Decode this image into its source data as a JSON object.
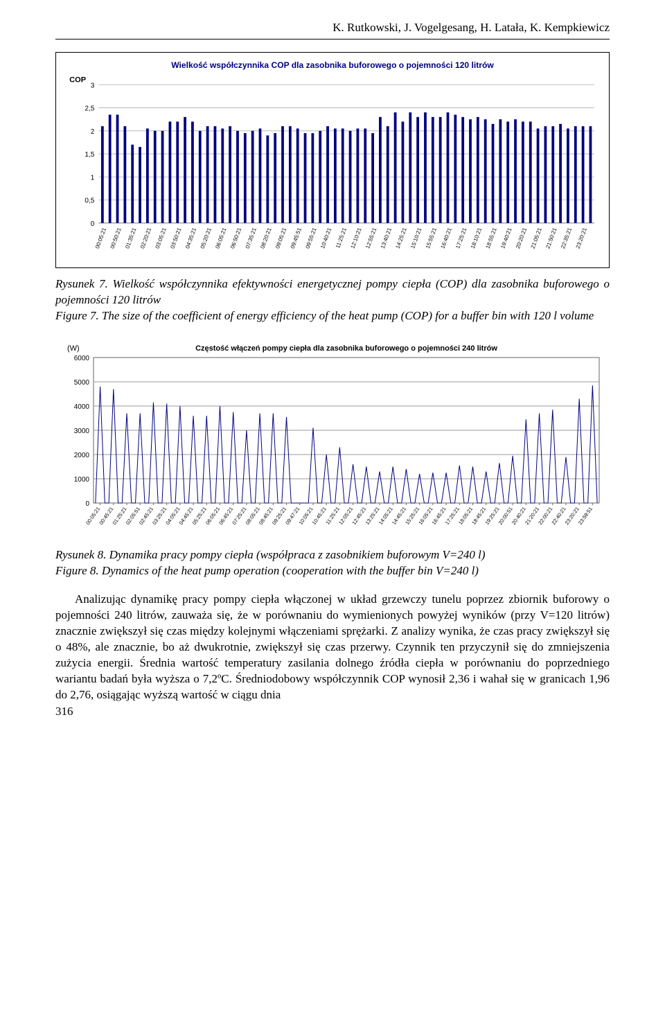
{
  "header": {
    "authors": "K. Rutkowski, J. Vogelgesang, H. Latała, K. Kempkiewicz"
  },
  "chart1": {
    "type": "bar",
    "title": "Wielkość współczynnika COP dla zasobnika buforowego o pojemności 120 litrów",
    "title_fontsize": 12,
    "title_color": "#000080",
    "ylabel": "COP",
    "ylim": [
      0,
      3
    ],
    "ytick_step": 0.5,
    "background_color": "#ffffff",
    "grid_color": "#c0c0c0",
    "bar_color": "#000080",
    "bar_width": 0.35,
    "categories": [
      "00:05:21",
      "00:50:21",
      "01:35:21",
      "02:20:21",
      "03:05:21",
      "03:50:21",
      "04:35:21",
      "05:20:21",
      "06:05:21",
      "06:50:21",
      "07:35:21",
      "08:20:21",
      "09:05:21",
      "09:45:51",
      "09:55:21",
      "10:40:21",
      "11:25:21",
      "12:10:21",
      "12:55:21",
      "13:40:21",
      "14:25:21",
      "15:10:21",
      "15:55:21",
      "16:40:21",
      "17:25:21",
      "18:10:21",
      "18:55:21",
      "19:40:21",
      "20:20:21",
      "21:05:21",
      "21:50:21",
      "22:35:21",
      "23:20:21"
    ],
    "groups_per_interval": 2,
    "values": [
      2.1,
      2.35,
      2.35,
      2.1,
      1.7,
      1.65,
      2.05,
      2.0,
      2.0,
      2.2,
      2.2,
      2.3,
      2.2,
      2.0,
      2.1,
      2.1,
      2.05,
      2.1,
      2.0,
      1.95,
      2.0,
      2.05,
      1.9,
      1.95,
      2.1,
      2.1,
      2.05,
      1.95,
      1.95,
      2.0,
      2.1,
      2.05,
      2.05,
      2.0,
      2.05,
      2.05,
      1.95,
      2.3,
      2.1,
      2.4,
      2.2,
      2.4,
      2.3,
      2.4,
      2.3,
      2.3,
      2.4,
      2.35,
      2.3,
      2.25,
      2.3,
      2.25,
      2.15,
      2.25,
      2.2,
      2.25,
      2.2,
      2.2,
      2.05,
      2.1,
      2.1,
      2.15,
      2.05,
      2.1,
      2.1,
      2.1
    ]
  },
  "caption1": {
    "line1": "Rysunek 7. Wielkość współczynnika efektywności energetycznej pompy ciepła (COP) dla zasobnika buforowego o pojemności 120 litrów",
    "line2": "Figure 7. The size of the coefficient of energy efficiency of the heat pump (COP) for a buffer bin with 120 l volume"
  },
  "chart2": {
    "type": "line",
    "title": "Częstość włączeń pompy ciepła dla zasobnika buforowego o pojemności 240 litrów",
    "title_fontsize": 11,
    "title_color": "#000000",
    "ylabel": "(W)",
    "ylim": [
      0,
      6000
    ],
    "ytick_step": 1000,
    "background_color": "#ffffff",
    "grid_color": "#999999",
    "line_color": "#000080",
    "line_width": 1,
    "categories": [
      "00:05:21",
      "00:45:21",
      "01:25:21",
      "02:05:51",
      "02:45:21",
      "03:25:21",
      "04:05:21",
      "04:45:21",
      "05:25:21",
      "06:05:21",
      "06:45:21",
      "07:25:21",
      "08:05:21",
      "08:45:21",
      "09:25:21",
      "09:47:21",
      "10:05:21",
      "10:45:21",
      "11:25:21",
      "12:05:21",
      "12:45:21",
      "13:25:21",
      "14:05:21",
      "14:45:21",
      "15:25:21",
      "16:05:21",
      "16:45:21",
      "17:25:21",
      "18:05:21",
      "18:45:21",
      "19:25:21",
      "20:00:51",
      "20:40:21",
      "21:20:21",
      "22:00:21",
      "22:40:21",
      "23:20:21",
      "23:59:51"
    ],
    "peaks": [
      4800,
      4700,
      3700,
      3700,
      4150,
      4100,
      4000,
      3600,
      3600,
      4000,
      3750,
      3000,
      3700,
      3700,
      3550,
      0,
      3100,
      2000,
      2300,
      1600,
      1500,
      1300,
      1500,
      1400,
      1200,
      1250,
      1250,
      1550,
      1500,
      1300,
      1650,
      1950,
      3450,
      3700,
      3850,
      1900,
      4300,
      4850
    ]
  },
  "caption2": {
    "line1": "Rysunek 8. Dynamika pracy pompy ciepła (współpraca z zasobnikiem buforowym V=240 l)",
    "line2": "Figure 8. Dynamics of the heat pump operation (cooperation with the buffer bin V=240 l)"
  },
  "body": {
    "paragraph": "Analizując dynamikę pracy pompy ciepła włączonej w układ grzewczy tunelu poprzez zbiornik buforowy o pojemności 240 litrów, zauważa się, że w porównaniu do wymienionych powyżej wyników (przy V=120 litrów) znacznie zwiększył się czas między kolejnymi włączeniami sprężarki. Z analizy wynika, że czas pracy zwiększył się o 48%, ale znacznie, bo aż dwukrotnie, zwiększył się czas przerwy. Czynnik ten przyczynił się do zmniejszenia zużycia energii. Średnia wartość temperatury zasilania dolnego źródła ciepła w porównaniu do poprzedniego wariantu badań była wyższa o 7,2ºC. Średniodobowy współczynnik COP wynosił 2,36 i wahał się w granicach 1,96 do 2,76, osiągając wyższą wartość w ciągu dnia"
  },
  "pageNumber": "316"
}
